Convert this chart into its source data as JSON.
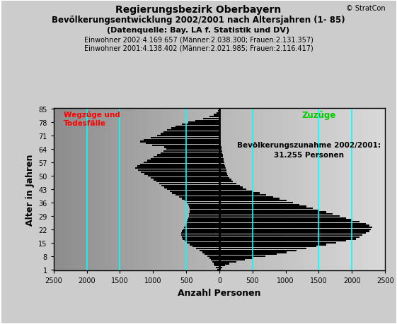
{
  "title_line1": "Regierungsbezirk Oberbayern",
  "title_line2": "Bevölkerungsentwicklung 2002/2001 nach Altersjahren (1- 85)",
  "title_line3": "(Datenquelle: Bay. LA f. Statistik und DV)",
  "subtitle1": "Einwohner 2002:4.169.657 (Männer:2.038.300; Frauen:2.131.357)",
  "subtitle2": "Einwohner 2001:4.138.402 (Männer:2.021.985; Frauen:2.116.417)",
  "copyright": "© StratCon",
  "xlabel": "Anzahl Personen",
  "ylabel": "Alter in Jahren",
  "label_left": "Wegzüge und\nTodesfälle",
  "label_right": "Zuzüge",
  "label_center": "Bevölkerungszunahme 2002/2001:\n31.255 Personen",
  "xlim": [
    -2500,
    2500
  ],
  "xticks": [
    -2500,
    -2000,
    -1500,
    -1000,
    -500,
    0,
    500,
    1000,
    1500,
    2000,
    2500
  ],
  "xticklabels": [
    "2500",
    "2000",
    "1500",
    "1000",
    "500",
    "0",
    "500",
    "1000",
    "1500",
    "2000",
    "2500"
  ],
  "yticks": [
    1,
    8,
    15,
    22,
    29,
    36,
    43,
    50,
    57,
    64,
    71,
    78,
    85
  ],
  "cyan_lines_x": [
    -2000,
    -1500,
    -500,
    500,
    1500,
    2000
  ],
  "bar_color": "#000000",
  "bar_height": 0.85,
  "values_negative": [
    -30,
    -50,
    -70,
    -90,
    -110,
    -130,
    -150,
    -180,
    -220,
    -260,
    -300,
    -350,
    -400,
    -450,
    -490,
    -520,
    -550,
    -570,
    -580,
    -575,
    -560,
    -545,
    -530,
    -515,
    -500,
    -490,
    -480,
    -470,
    -460,
    -455,
    -450,
    -445,
    -450,
    -460,
    -470,
    -490,
    -520,
    -560,
    -610,
    -660,
    -710,
    -750,
    -790,
    -830,
    -870,
    -910,
    -950,
    -990,
    -1030,
    -1080,
    -1130,
    -1180,
    -1230,
    -1270,
    -1240,
    -1190,
    -1140,
    -1090,
    -1040,
    -990,
    -940,
    -890,
    -840,
    -800,
    -830,
    -1010,
    -1110,
    -1200,
    -1140,
    -1040,
    -940,
    -890,
    -840,
    -790,
    -730,
    -660,
    -570,
    -470,
    -360,
    -240,
    -150,
    -80,
    -40,
    -20,
    -10
  ],
  "values_positive": [
    20,
    45,
    85,
    155,
    260,
    390,
    510,
    690,
    860,
    1010,
    1160,
    1310,
    1460,
    1610,
    1760,
    1910,
    2060,
    2110,
    2160,
    2210,
    2260,
    2290,
    2310,
    2260,
    2210,
    2110,
    2010,
    1910,
    1810,
    1710,
    1610,
    1510,
    1410,
    1310,
    1210,
    1110,
    1010,
    910,
    810,
    710,
    610,
    510,
    410,
    355,
    305,
    255,
    205,
    180,
    155,
    130,
    118,
    112,
    102,
    92,
    82,
    77,
    72,
    67,
    62,
    57,
    52,
    47,
    42,
    37,
    32,
    27,
    22,
    19,
    16,
    13,
    11,
    9,
    7,
    6,
    5,
    4,
    3,
    3,
    3,
    3,
    3,
    3,
    3,
    2,
    2
  ]
}
